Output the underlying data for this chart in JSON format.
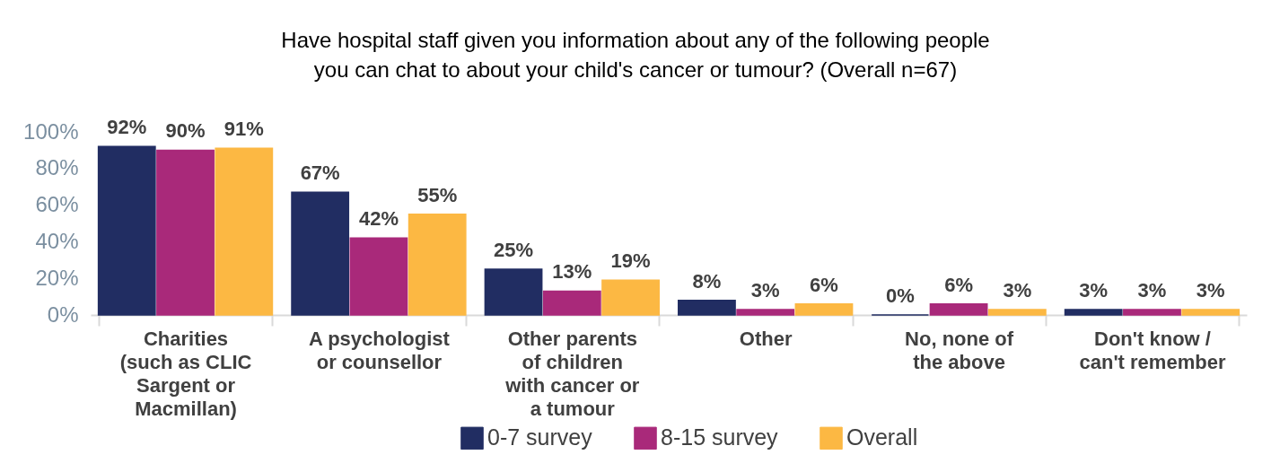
{
  "chart_data": {
    "type": "bar",
    "title": [
      "Have hospital staff given you information about any of the following people",
      "you can chat to about your child's cancer or tumour? (Overall n=67)"
    ],
    "categories": [
      "Charities (such as CLIC Sargent or Macmillan)",
      "A psychologist or counsellor",
      "Other parents of children with cancer or a tumour",
      "Other",
      "No, none of the above",
      "Don't know / can't remember"
    ],
    "series": [
      {
        "name": "0-7 survey",
        "color": "#212d62",
        "values": [
          92,
          67,
          25,
          8,
          0,
          3
        ],
        "value_labels": [
          "92%",
          "67%",
          "25%",
          "8%",
          "0%",
          "3%"
        ]
      },
      {
        "name": "8-15 survey",
        "color": "#a9297a",
        "values": [
          90,
          42,
          13,
          3,
          6,
          3
        ],
        "value_labels": [
          "90%",
          "42%",
          "13%",
          "3%",
          "6%",
          "3%"
        ]
      },
      {
        "name": "Overall",
        "color": "#fcb843",
        "values": [
          91,
          55,
          19,
          6,
          3,
          3
        ],
        "value_labels": [
          "91%",
          "55%",
          "19%",
          "6%",
          "3%",
          "3%"
        ]
      }
    ],
    "ylim": [
      0,
      100
    ],
    "yticks": [
      {
        "value": 0,
        "label": "0%"
      },
      {
        "value": 20,
        "label": "20%"
      },
      {
        "value": 40,
        "label": "40%"
      },
      {
        "value": 60,
        "label": "60%"
      },
      {
        "value": 80,
        "label": "80%"
      },
      {
        "value": 100,
        "label": "100%"
      }
    ],
    "grid": false,
    "legend": "bottom"
  }
}
